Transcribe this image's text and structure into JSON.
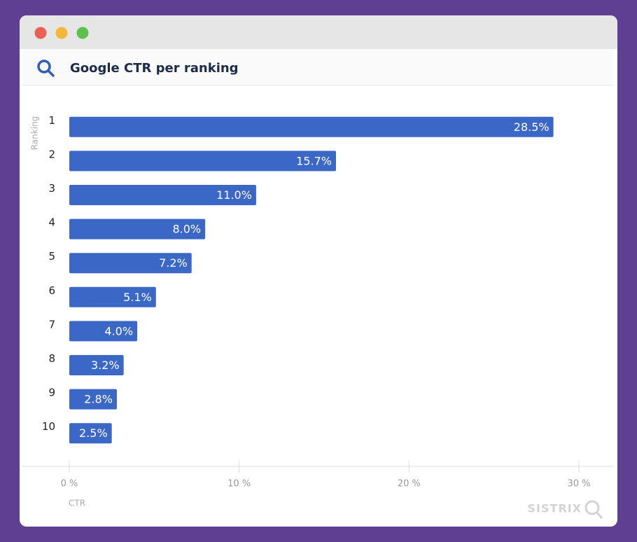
{
  "chart_data": {
    "type": "bar",
    "orientation": "horizontal",
    "title": "Google CTR per ranking",
    "y_label": "Ranking",
    "x_label": "CTR",
    "watermark": "SISTRIX",
    "categories": [
      "1",
      "2",
      "3",
      "4",
      "5",
      "6",
      "7",
      "8",
      "9",
      "10"
    ],
    "values": [
      28.5,
      15.7,
      11.0,
      8.0,
      7.2,
      5.1,
      4.0,
      3.2,
      2.8,
      2.5
    ],
    "value_labels": [
      "28.5%",
      "15.7%",
      "11.0%",
      "8.0%",
      "7.2%",
      "5.1%",
      "4.0%",
      "3.2%",
      "2.8%",
      "2.5%"
    ],
    "color": "#3b68c6",
    "xlim": [
      0,
      30
    ],
    "xticks": [
      {
        "value": 0,
        "label": "0 %"
      },
      {
        "value": 10,
        "label": "10 %"
      },
      {
        "value": 20,
        "label": "20 %"
      },
      {
        "value": 30,
        "label": "30 %"
      }
    ]
  }
}
